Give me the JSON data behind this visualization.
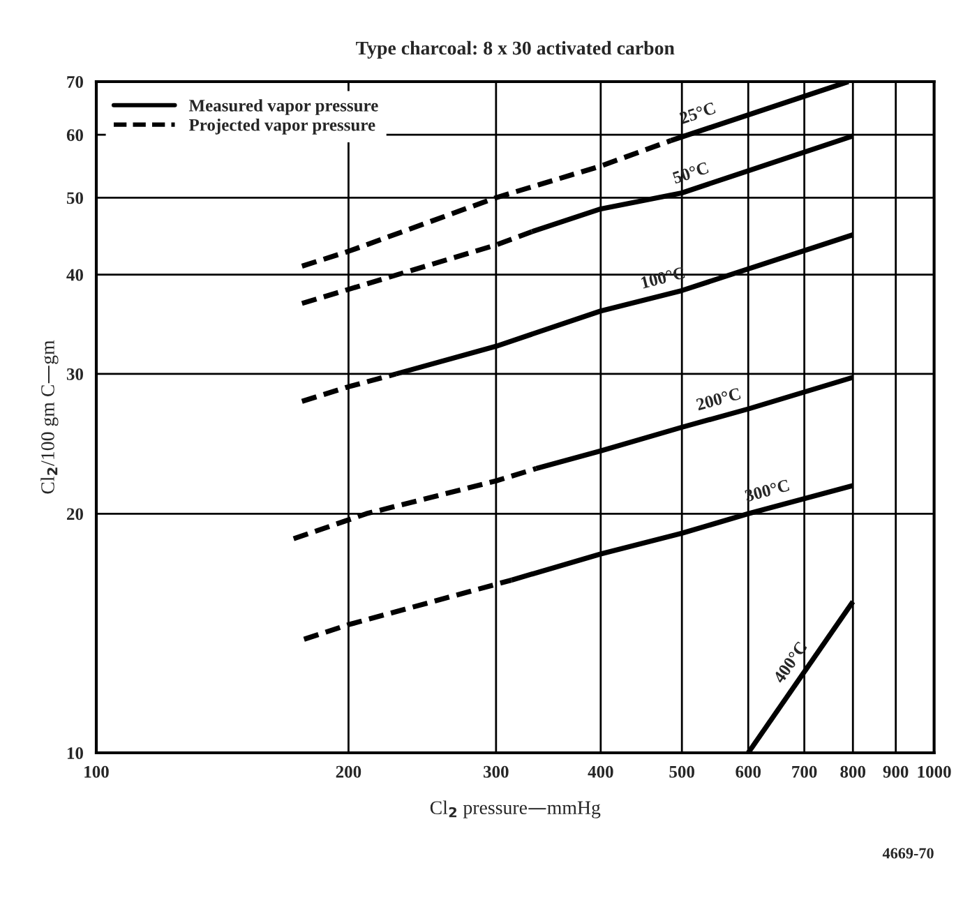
{
  "chart_data": {
    "type": "line",
    "title": "Type charcoal: 8 x 30 activated carbon",
    "xlabel": "Cl$_{2}$ pressure—mmHg",
    "ylabel": "Cl$_{2}$/100 gm C—gm",
    "log": "xy",
    "xlim": [
      100,
      1000
    ],
    "ylim": [
      10,
      70
    ],
    "xticks": [
      100,
      200,
      300,
      400,
      500,
      600,
      700,
      800,
      900,
      1000
    ],
    "yticks": [
      10,
      20,
      30,
      40,
      50,
      60,
      70
    ],
    "grid": true,
    "legend": "top left",
    "marker": "none",
    "series": [
      {
        "name": "Measured vapor pressure",
        "color": "#000000",
        "line_style": "solid",
        "x": [
          485,
          790
        ],
        "values": [
          59,
          70
        ]
      },
      {
        "color": "#000000",
        "line_style": "solid",
        "x": [
          331,
          400,
          500,
          800
        ],
        "values": [
          45.3,
          48.4,
          50.7,
          59.8
        ]
      },
      {
        "color": "#000000",
        "line_style": "solid",
        "x": [
          228,
          300,
          400,
          500,
          800
        ],
        "values": [
          30,
          32.5,
          36,
          38.2,
          44.9
        ]
      },
      {
        "color": "#000000",
        "line_style": "solid",
        "x": [
          335,
          400,
          500,
          600,
          800
        ],
        "values": [
          22.8,
          24,
          25.7,
          27.1,
          29.7
        ]
      },
      {
        "color": "#000000",
        "line_style": "solid",
        "x": [
          313,
          400,
          500,
          600,
          800
        ],
        "values": [
          16.5,
          17.8,
          18.9,
          20,
          21.7
        ]
      },
      {
        "color": "#000000",
        "line_style": "solid",
        "x": [
          600,
          800
        ],
        "values": [
          10,
          15.5
        ]
      },
      {
        "name": "Projected vapor pressure",
        "color": "#000000",
        "line_style": "dashed",
        "x": [
          176,
          200,
          300,
          400,
          485
        ],
        "values": [
          41,
          42.8,
          50,
          54.8,
          59
        ]
      },
      {
        "color": "#000000",
        "line_style": "dashed",
        "x": [
          176,
          300,
          331
        ],
        "values": [
          36.8,
          43.6,
          45.3
        ]
      },
      {
        "color": "#000000",
        "line_style": "dashed",
        "x": [
          176,
          200,
          228
        ],
        "values": [
          27.7,
          28.9,
          30
        ]
      },
      {
        "color": "#000000",
        "line_style": "dashed",
        "x": [
          172,
          210,
          300,
          335
        ],
        "values": [
          18.6,
          20,
          22,
          22.8
        ]
      },
      {
        "color": "#000000",
        "line_style": "dashed",
        "x": [
          177,
          200,
          300,
          313
        ],
        "values": [
          13.9,
          14.5,
          16.3,
          16.5
        ]
      }
    ],
    "annotations": [
      {
        "text": "25°C",
        "x": 530,
        "y": 61
      },
      {
        "text": "50°C",
        "x": 520,
        "y": 51.3
      },
      {
        "text": "100°C",
        "x": 480,
        "y": 37.8
      },
      {
        "text": "200°C",
        "x": 560,
        "y": 26.6
      },
      {
        "text": "300°C",
        "x": 640,
        "y": 20.4
      },
      {
        "text": "400°C",
        "x": 700,
        "y": 12.65
      },
      "4669-70"
    ]
  }
}
